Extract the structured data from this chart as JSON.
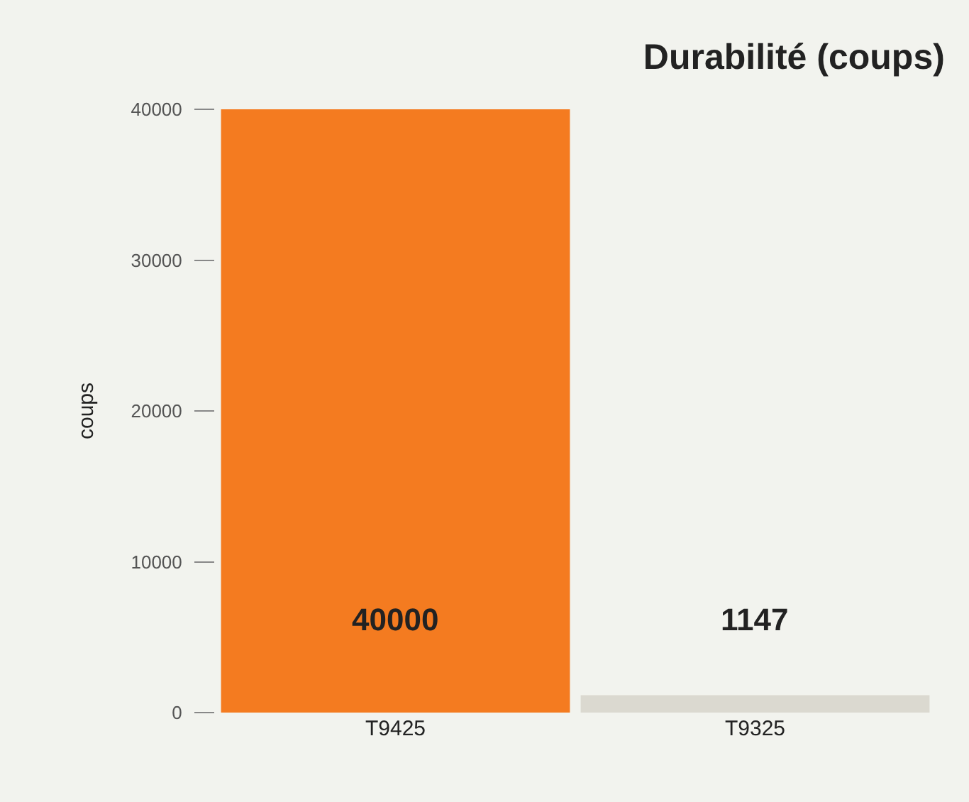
{
  "chart_data": {
    "type": "bar",
    "title": "Durabilité (coups)",
    "ylabel": "coups",
    "categories": [
      "T9425",
      "T9325"
    ],
    "values": [
      40000,
      1147
    ],
    "colors": [
      "#f47b20",
      "#dbd9d0"
    ],
    "ylim": [
      0,
      40000
    ],
    "yticks": [
      0,
      10000,
      20000,
      30000,
      40000
    ],
    "grid": false,
    "data_labels": true
  }
}
